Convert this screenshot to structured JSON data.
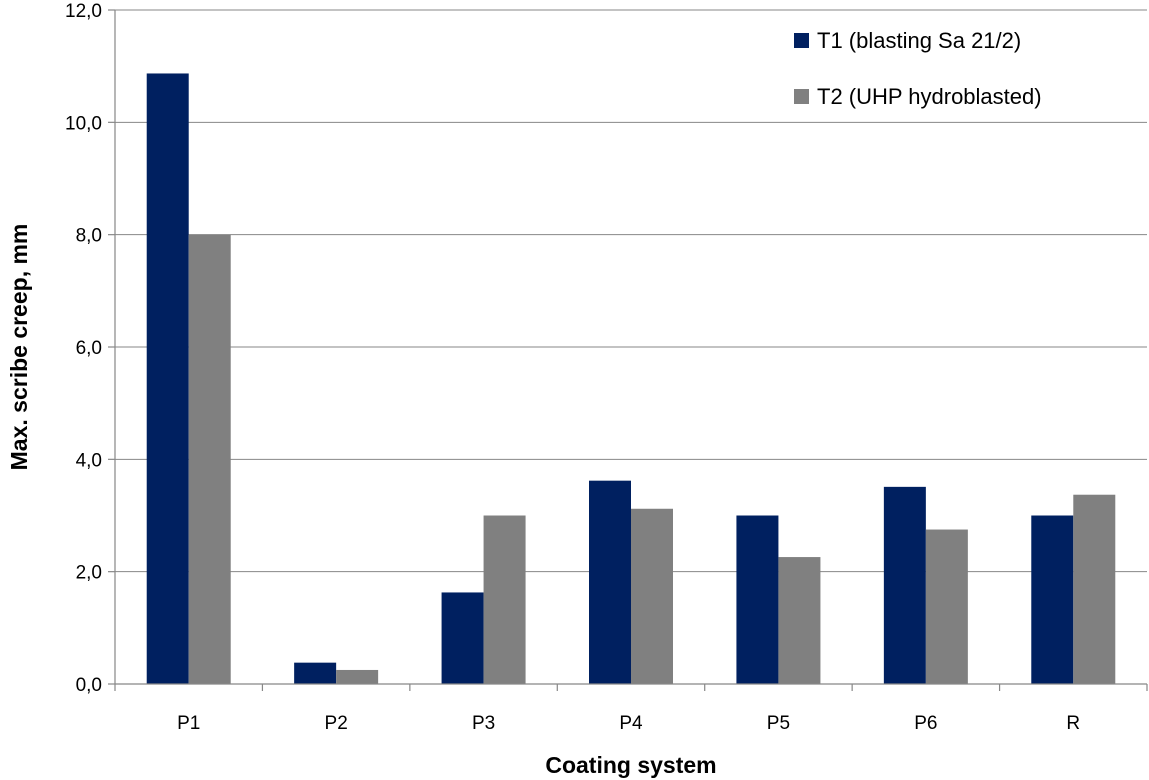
{
  "chart_data": {
    "type": "bar",
    "title": "",
    "xlabel": "Coating system",
    "ylabel": "Max. scribe creep, mm",
    "categories": [
      "P1",
      "P2",
      "P3",
      "P4",
      "P5",
      "P6",
      "R"
    ],
    "series": [
      {
        "name": "T1 (blasting Sa 21/2)",
        "color": "#002060",
        "values": [
          10.87,
          0.38,
          1.63,
          3.62,
          3.0,
          3.51,
          3.0
        ]
      },
      {
        "name": "T2 (UHP hydroblasted)",
        "color": "#808080",
        "values": [
          8.0,
          0.25,
          3.0,
          3.12,
          2.26,
          2.75,
          3.37
        ]
      }
    ],
    "ylim": [
      0,
      12
    ],
    "yticks": [
      0,
      2,
      4,
      6,
      8,
      10,
      12
    ],
    "ytick_labels": [
      "0,0",
      "2,0",
      "4,0",
      "6,0",
      "8,0",
      "10,0",
      "12,0"
    ],
    "grid": true,
    "legend_position": "top-right"
  }
}
